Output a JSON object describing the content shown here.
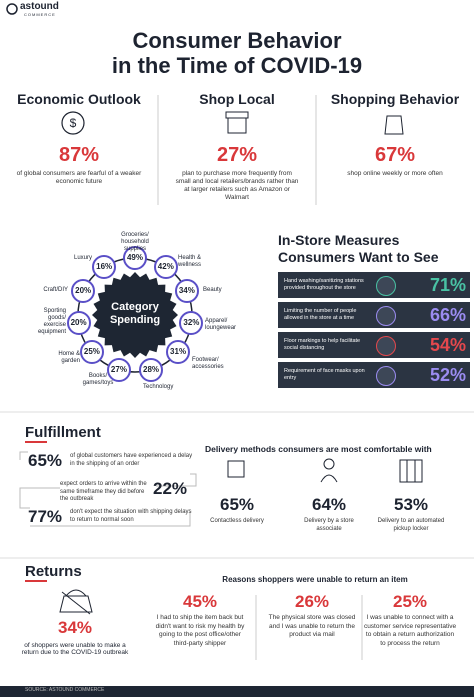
{
  "header": {
    "logo": "astound",
    "logo_sub": "COMMERCE",
    "title_lines": [
      "Consumer Behavior",
      "in the Time of COVID-19"
    ]
  },
  "stats": [
    {
      "heading": "Economic Outlook",
      "value": "87%",
      "text": "of global consumers are fearful of a weaker economic future"
    },
    {
      "heading": "Shop Local",
      "value": "27%",
      "text": "plan to purchase more frequently from small and local retailers/brands rather than at larger retailers such as Amazon or Walmart"
    },
    {
      "heading": "Shopping Behavior",
      "value": "67%",
      "text": "shop online weekly or more often"
    }
  ],
  "category_spending": {
    "title": "Category Spending",
    "items": [
      {
        "label": "Groceries/ household supplies",
        "value": "49%"
      },
      {
        "label": "Health & wellness",
        "value": "42%"
      },
      {
        "label": "Beauty",
        "value": "34%"
      },
      {
        "label": "Apparel/ loungewear",
        "value": "32%"
      },
      {
        "label": "Footwear/ accessories",
        "value": "31%"
      },
      {
        "label": "Technology",
        "value": "28%"
      },
      {
        "label": "Books/ games/toys",
        "value": "27%"
      },
      {
        "label": "Home & garden",
        "value": "25%"
      },
      {
        "label": "Sporting goods/ exercise equipment",
        "value": "20%"
      },
      {
        "label": "Craft/DIY",
        "value": "20%"
      },
      {
        "label": "Luxury",
        "value": "16%"
      }
    ]
  },
  "in_store": {
    "title": "In-Store Measures Consumers Want to See",
    "items": [
      {
        "text": "Hand washing/sanitizing stations provided throughout the store",
        "value": "71%"
      },
      {
        "text": "Limiting the number of people allowed in the store at a time",
        "value": "66%"
      },
      {
        "text": "Floor markings to help facilitate social distancing",
        "value": "54%"
      },
      {
        "text": "Requirement of face masks upon entry",
        "value": "52%"
      }
    ]
  },
  "fulfillment": {
    "title": "Fulfillment",
    "facts": [
      {
        "value": "65%",
        "text": "of global customers have experienced a delay in the shipping of an order"
      },
      {
        "value": "22%",
        "text": "expect orders to arrive within the same timeframe they did before the outbreak"
      },
      {
        "value": "77%",
        "text": "don't expect the situation with shipping delays to return to normal soon"
      }
    ],
    "delivery_title": "Delivery methods consumers are most comfortable with",
    "delivery": [
      {
        "value": "65%",
        "label": "Contactless delivery"
      },
      {
        "value": "64%",
        "label": "Delivery by a store associate"
      },
      {
        "value": "53%",
        "label": "Delivery to an automated pickup locker"
      }
    ]
  },
  "returns": {
    "title": "Returns",
    "value": "34%",
    "text": "of shoppers were unable to make a return due to the COVID-19 outbreak",
    "reasons_title": "Reasons shoppers were unable to return an item",
    "reasons": [
      {
        "value": "45%",
        "text": "I had to ship the item back but didn't want to risk my health by going to the post office/other third-party shipper"
      },
      {
        "value": "26%",
        "text": "The physical store was closed and I was unable to return the product via mail"
      },
      {
        "value": "25%",
        "text": "I was unable to connect with a customer service representative to obtain a return authorization to process the return"
      }
    ]
  },
  "footer": "SOURCE: ASTOUND COMMERCE"
}
